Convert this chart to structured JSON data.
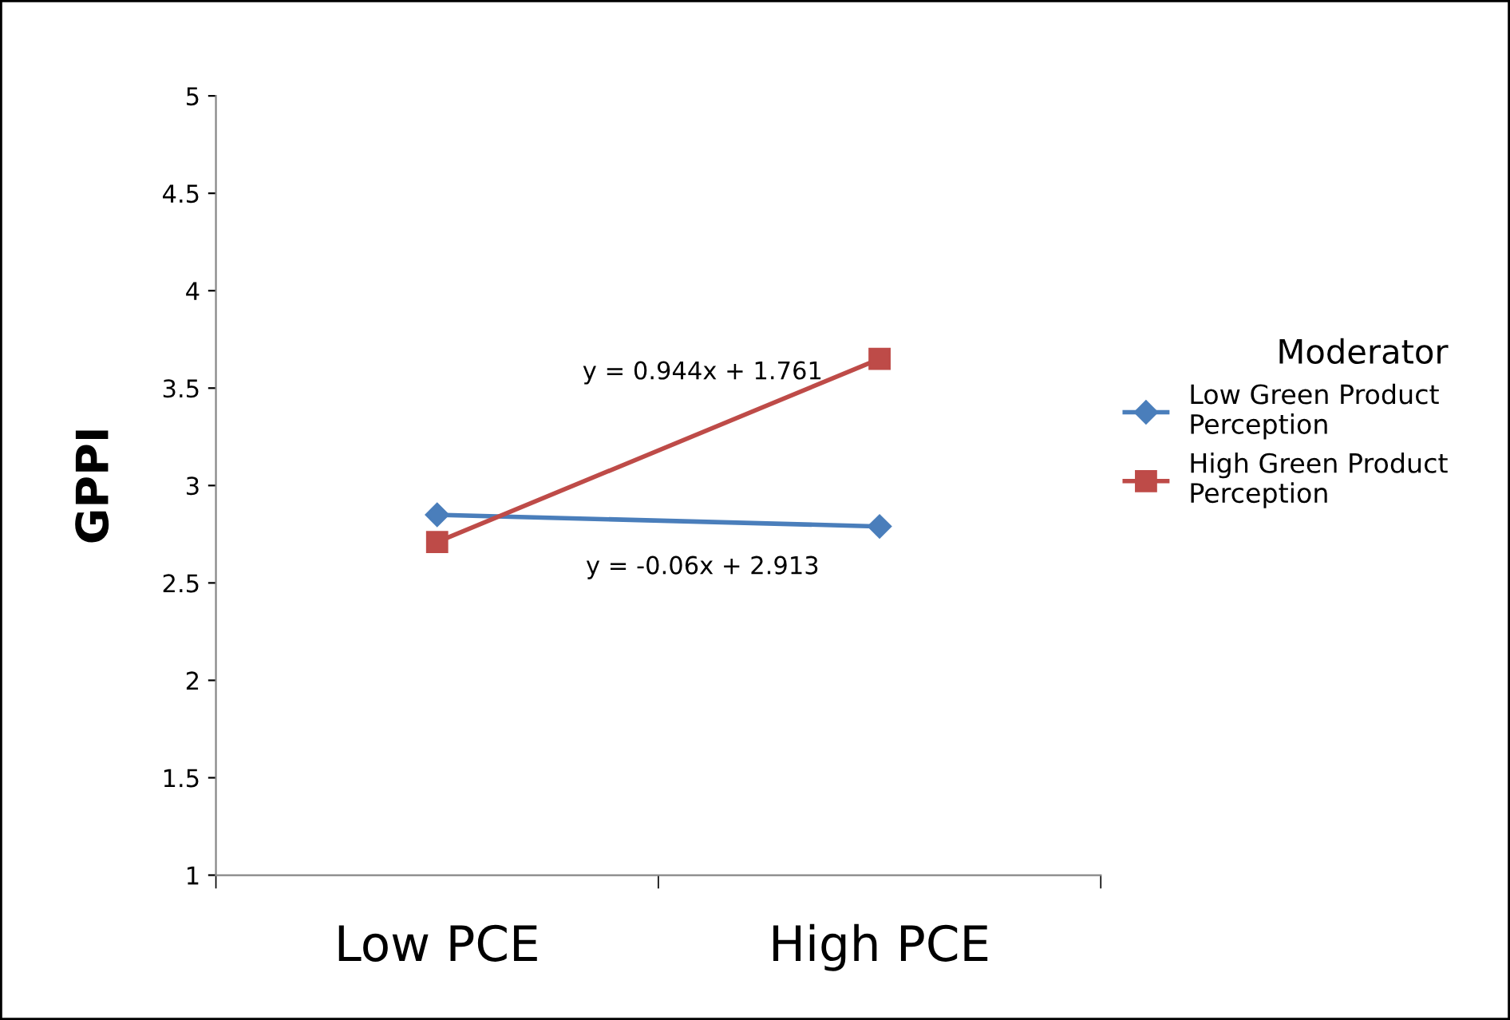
{
  "chart_data": {
    "type": "line",
    "ylabel": "GPPI",
    "legend_title": "Moderator",
    "categories": [
      "Low PCE",
      "High PCE"
    ],
    "series": [
      {
        "name": "Low Green Product Perception",
        "color": "#4a7ebb",
        "marker": "diamond",
        "values": [
          2.85,
          2.79
        ]
      },
      {
        "name": "High Green Product Perception",
        "color": "#be4b48",
        "marker": "square",
        "values": [
          2.71,
          3.65
        ]
      }
    ],
    "ylim": [
      1,
      5
    ],
    "yticks": [
      1,
      1.5,
      2,
      2.5,
      3,
      3.5,
      4,
      4.5,
      5
    ],
    "annotations": [
      "y = 0.944x + 1.761",
      "y = -0.06x + 2.913"
    ],
    "grid": false,
    "legend": "right",
    "line_style": "solid"
  }
}
